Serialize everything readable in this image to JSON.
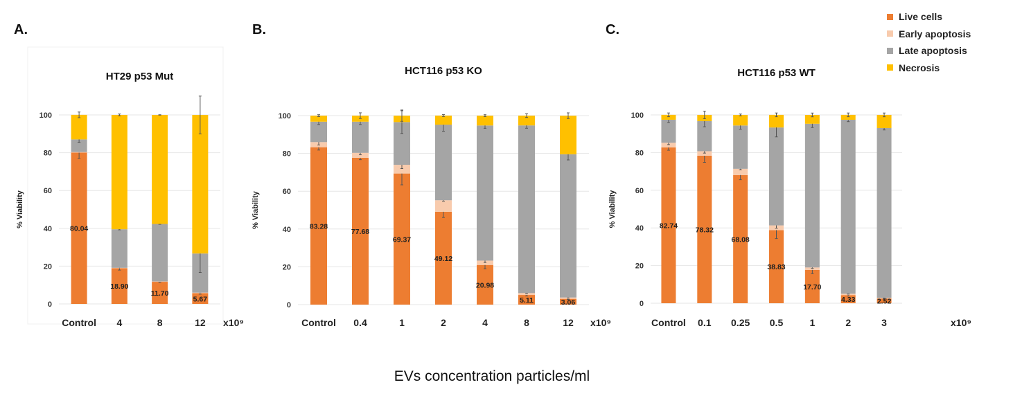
{
  "panels": [
    "A.",
    "B.",
    "C."
  ],
  "legend": [
    {
      "label": "Live cells",
      "color": "#ED7D31"
    },
    {
      "label": "Early apoptosis",
      "color": "#F8CBAD"
    },
    {
      "label": "Late apoptosis",
      "color": "#A5A5A5"
    },
    {
      "label": "Necrosis",
      "color": "#FFC000"
    }
  ],
  "xlabel": "EVs concentration particles/ml",
  "chart_data": [
    {
      "type": "bar",
      "stacked": true,
      "title": "HT29 p53 Mut",
      "ylabel": "% Viability",
      "ylim": [
        0,
        100
      ],
      "yticks": [
        "0",
        "20",
        "40",
        "60",
        "80",
        "100"
      ],
      "grid": true,
      "unit_label": "x10⁹",
      "categories": [
        "Control",
        "4",
        "8",
        "12"
      ],
      "series": [
        {
          "name": "Live cells",
          "values": [
            80.04,
            18.9,
            11.7,
            5.67
          ],
          "errors": [
            3,
            1,
            0.3,
            0.5
          ]
        },
        {
          "name": "Early apoptosis",
          "values": [
            0.3,
            0.2,
            0.2,
            0.3
          ],
          "errors": [
            0,
            0,
            0,
            0
          ]
        },
        {
          "name": "Late apoptosis",
          "values": [
            6.7,
            20.4,
            30.4,
            20.7
          ],
          "errors": [
            1.5,
            0.3,
            0.2,
            10
          ]
        },
        {
          "name": "Necrosis",
          "values": [
            13.0,
            60.5,
            57.7,
            73.3
          ],
          "errors": [
            1.5,
            0.5,
            0.1,
            10
          ]
        }
      ],
      "data_labels": [
        "80.04",
        "18.90",
        "11.70",
        "5.67"
      ]
    },
    {
      "type": "bar",
      "stacked": true,
      "title": "HCT116 p53 KO",
      "ylabel": "% Viability",
      "ylim": [
        0,
        100
      ],
      "yticks": [
        "0",
        "20",
        "40",
        "60",
        "80",
        "100"
      ],
      "grid": true,
      "unit_label": "x10⁹",
      "categories": [
        "Control",
        "0.4",
        "1",
        "2",
        "4",
        "8",
        "12"
      ],
      "series": [
        {
          "name": "Live cells",
          "values": [
            83.28,
            77.68,
            69.37,
            49.12,
            20.98,
            5.11,
            3.06
          ],
          "errors": [
            1.5,
            1,
            6,
            3,
            2,
            0.5,
            0.3
          ]
        },
        {
          "name": "Early apoptosis",
          "values": [
            2.7,
            2.6,
            4.6,
            6.1,
            2.3,
            1.0,
            0.7
          ],
          "errors": [
            1.5,
            1,
            2,
            0.5,
            1,
            0.3,
            0.3
          ]
        },
        {
          "name": "Late apoptosis",
          "values": [
            10.8,
            16.5,
            22.6,
            40.0,
            71.5,
            88.7,
            75.8
          ],
          "errors": [
            1.5,
            1.5,
            6,
            3.5,
            1.5,
            1.5,
            3
          ]
        },
        {
          "name": "Necrosis",
          "values": [
            3.2,
            3.2,
            3.4,
            4.8,
            5.2,
            5.2,
            20.4
          ],
          "errors": [
            0.5,
            1.5,
            3,
            0.5,
            0.5,
            1,
            1.5
          ]
        }
      ],
      "data_labels": [
        "83.28",
        "77.68",
        "69.37",
        "49.12",
        "20.98",
        "5.11",
        "3.06"
      ]
    },
    {
      "type": "bar",
      "stacked": true,
      "title": "HCT116 p53 WT",
      "ylabel": "% Viability",
      "ylim": [
        0,
        100
      ],
      "yticks": [
        "0",
        "20",
        "40",
        "60",
        "80",
        "100"
      ],
      "grid": true,
      "unit_label": "x10⁹",
      "categories": [
        "Control",
        "0.1",
        "0.25",
        "0.5",
        "1",
        "2",
        "3"
      ],
      "series": [
        {
          "name": "Live cells",
          "values": [
            82.74,
            78.32,
            68.08,
            38.83,
            17.7,
            4.33,
            2.52
          ],
          "errors": [
            1.5,
            3.5,
            2.5,
            4.5,
            2,
            0.5,
            0.3
          ]
        },
        {
          "name": "Early apoptosis",
          "values": [
            2.5,
            2.4,
            3.3,
            2.5,
            1.3,
            0.7,
            0.3
          ],
          "errors": [
            1,
            1,
            0.5,
            1.5,
            0.5,
            0.2,
            0.2
          ]
        },
        {
          "name": "Late apoptosis",
          "values": [
            12.2,
            16.0,
            23.0,
            52.0,
            76.3,
            92.4,
            90.2
          ],
          "errors": [
            1.5,
            3,
            2,
            5,
            2,
            1,
            1
          ]
        },
        {
          "name": "Necrosis",
          "values": [
            2.6,
            3.3,
            5.6,
            6.7,
            4.7,
            2.6,
            7.0
          ],
          "errors": [
            1,
            2,
            0.5,
            1,
            1,
            1,
            1
          ]
        }
      ],
      "data_labels": [
        "82.74",
        "78.32",
        "68.08",
        "38.83",
        "17.70",
        "4.33",
        "2.52"
      ]
    }
  ]
}
